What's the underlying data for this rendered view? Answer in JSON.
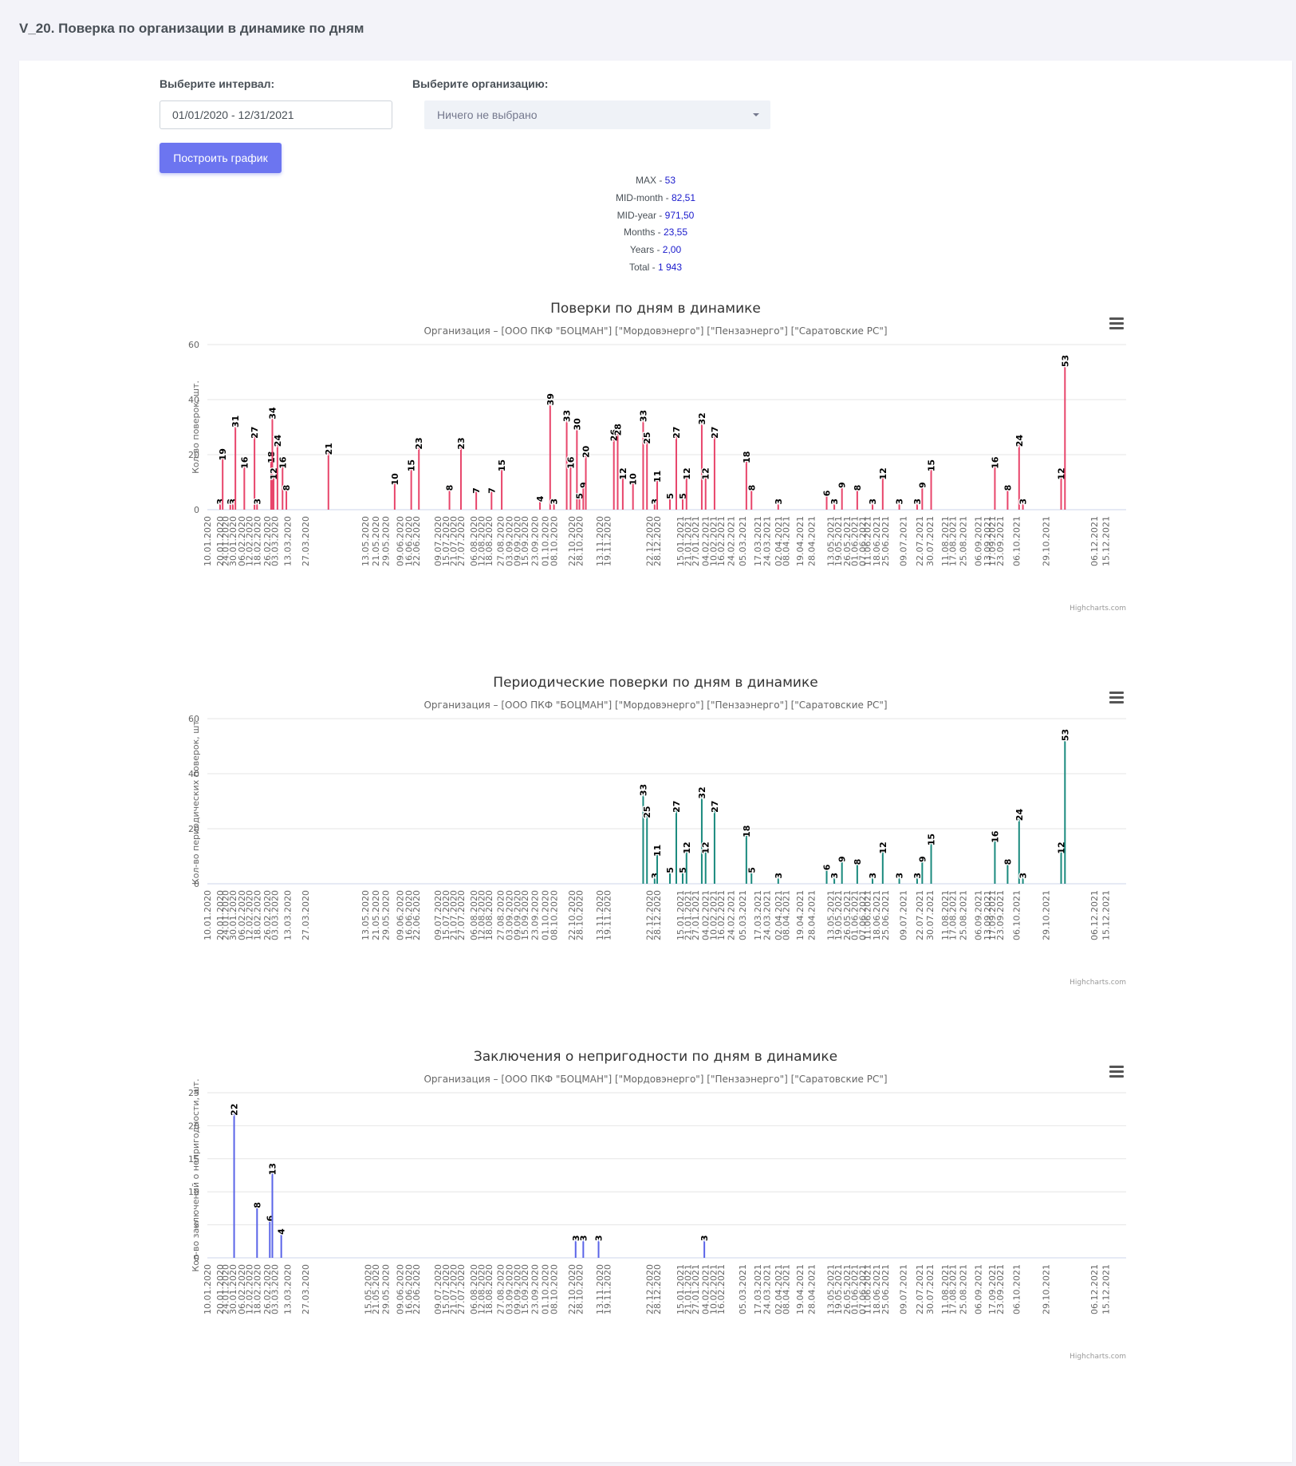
{
  "header": {
    "title": "V_20. Поверка по организации в динамике по дням"
  },
  "filters": {
    "interval_label": "Выберите интервал:",
    "interval_value": "01/01/2020 - 12/31/2021",
    "org_label": "Выберите организацию:",
    "org_value": "Ничего не выбрано",
    "build_button": "Построить график"
  },
  "stats": [
    {
      "label": "MAX - ",
      "value": "53"
    },
    {
      "label": "MID-month - ",
      "value": "82,51"
    },
    {
      "label": "MID-year - ",
      "value": "971,50"
    },
    {
      "label": "Months - ",
      "value": "23,55"
    },
    {
      "label": "Years - ",
      "value": "2,00"
    },
    {
      "label": "Total - ",
      "value": "1 943"
    }
  ],
  "colors": {
    "chart1": "#e8456b",
    "chart2": "#1a8a7e",
    "chart3": "#5a64e8",
    "accent": "#6c75f0"
  },
  "credits": "Highcharts.com",
  "chart_data": [
    {
      "type": "bar",
      "title": "Поверки по дням в динамике",
      "subtitle": "Организация – [ООО ПКФ \"БОЦМАН\"] [\"Мордовэнерго\"] [\"Пензаэнерго\"] [\"Саратовские РС\"]",
      "ylabel": "Кол-во поверок, шт.",
      "ylim": [
        0,
        60
      ],
      "yticks": [
        0,
        20,
        40,
        60
      ],
      "xdomain": [
        "2020-01-10",
        "2021-12-31"
      ],
      "xticks": [
        "10.01.2020",
        "20.01.2020",
        "24.01.2020",
        "30.01.2020",
        "06.02.2020",
        "12.02.2020",
        "18.02.2020",
        "26.02.2020",
        "03.03.2020",
        "13.03.2020",
        "27.03.2020",
        "13.05.2020",
        "21.05.2020",
        "29.05.2020",
        "09.06.2020",
        "16.06.2020",
        "22.06.2020",
        "09.07.2020",
        "15.07.2020",
        "21.07.2020",
        "27.07.2020",
        "06.08.2020",
        "12.08.2020",
        "18.08.2020",
        "27.08.2020",
        "03.09.2020",
        "09.09.2020",
        "15.09.2020",
        "23.09.2020",
        "01.10.2020",
        "08.10.2020",
        "22.10.2020",
        "28.10.2020",
        "13.11.2020",
        "19.11.2020",
        "22.12.2020",
        "28.12.2020",
        "15.01.2021",
        "21.01.2021",
        "27.01.2021",
        "04.02.2021",
        "10.02.2021",
        "16.02.2021",
        "24.02.2021",
        "05.03.2021",
        "17.03.2021",
        "24.03.2021",
        "02.04.2021",
        "08.04.2021",
        "19.04.2021",
        "28.04.2021",
        "13.05.2021",
        "19.05.2021",
        "26.05.2021",
        "01.06.2021",
        "07.06.2021",
        "11.06.2021",
        "18.06.2021",
        "25.06.2021",
        "09.07.2021",
        "22.07.2021",
        "30.07.2021",
        "11.08.2021",
        "17.08.2021",
        "25.08.2021",
        "06.09.2021",
        "13.09.2021",
        "17.09.2021",
        "23.09.2021",
        "06.10.2021",
        "29.10.2021",
        "06.12.2021",
        "15.12.2021"
      ],
      "labeled_points": [
        {
          "x": "2020-01-20",
          "y": 3
        },
        {
          "x": "2020-01-22",
          "y": 19
        },
        {
          "x": "2020-01-28",
          "y": 3
        },
        {
          "x": "2020-01-30",
          "y": 3
        },
        {
          "x": "2020-02-01",
          "y": 31
        },
        {
          "x": "2020-02-08",
          "y": 16
        },
        {
          "x": "2020-02-16",
          "y": 27
        },
        {
          "x": "2020-02-18",
          "y": 3
        },
        {
          "x": "2020-02-29",
          "y": 18
        },
        {
          "x": "2020-03-01",
          "y": 34
        },
        {
          "x": "2020-03-02",
          "y": 12
        },
        {
          "x": "2020-03-05",
          "y": 24
        },
        {
          "x": "2020-03-09",
          "y": 16
        },
        {
          "x": "2020-03-12",
          "y": 8
        },
        {
          "x": "2020-04-14",
          "y": 21
        },
        {
          "x": "2020-06-05",
          "y": 10
        },
        {
          "x": "2020-06-18",
          "y": 15
        },
        {
          "x": "2020-06-24",
          "y": 23
        },
        {
          "x": "2020-07-18",
          "y": 8
        },
        {
          "x": "2020-07-27",
          "y": 23
        },
        {
          "x": "2020-08-08",
          "y": 7
        },
        {
          "x": "2020-08-20",
          "y": 7
        },
        {
          "x": "2020-08-28",
          "y": 15
        },
        {
          "x": "2020-09-27",
          "y": 4
        },
        {
          "x": "2020-10-05",
          "y": 39
        },
        {
          "x": "2020-10-08",
          "y": 3
        },
        {
          "x": "2020-10-18",
          "y": 33
        },
        {
          "x": "2020-10-21",
          "y": 16
        },
        {
          "x": "2020-10-26",
          "y": 30
        },
        {
          "x": "2020-10-28",
          "y": 5
        },
        {
          "x": "2020-10-31",
          "y": 9
        },
        {
          "x": "2020-11-02",
          "y": 20
        },
        {
          "x": "2020-11-24",
          "y": 26
        },
        {
          "x": "2020-11-27",
          "y": 28
        },
        {
          "x": "2020-12-01",
          "y": 12
        },
        {
          "x": "2020-12-09",
          "y": 10
        },
        {
          "x": "2020-12-17",
          "y": 33
        },
        {
          "x": "2020-12-20",
          "y": 25
        },
        {
          "x": "2020-12-26",
          "y": 3
        },
        {
          "x": "2020-12-28",
          "y": 11
        },
        {
          "x": "2021-01-07",
          "y": 5
        },
        {
          "x": "2021-01-12",
          "y": 27
        },
        {
          "x": "2021-01-17",
          "y": 5
        },
        {
          "x": "2021-01-20",
          "y": 12
        },
        {
          "x": "2021-02-01",
          "y": 32
        },
        {
          "x": "2021-02-04",
          "y": 12
        },
        {
          "x": "2021-02-11",
          "y": 27
        },
        {
          "x": "2021-03-08",
          "y": 18
        },
        {
          "x": "2021-03-12",
          "y": 8
        },
        {
          "x": "2021-04-02",
          "y": 3
        },
        {
          "x": "2021-05-10",
          "y": 6
        },
        {
          "x": "2021-05-16",
          "y": 3
        },
        {
          "x": "2021-05-22",
          "y": 9
        },
        {
          "x": "2021-06-03",
          "y": 8
        },
        {
          "x": "2021-06-15",
          "y": 3
        },
        {
          "x": "2021-06-23",
          "y": 12
        },
        {
          "x": "2021-07-06",
          "y": 3
        },
        {
          "x": "2021-07-20",
          "y": 3
        },
        {
          "x": "2021-07-24",
          "y": 9
        },
        {
          "x": "2021-07-31",
          "y": 15
        },
        {
          "x": "2021-09-19",
          "y": 16
        },
        {
          "x": "2021-09-29",
          "y": 8
        },
        {
          "x": "2021-10-08",
          "y": 24
        },
        {
          "x": "2021-10-11",
          "y": 3
        },
        {
          "x": "2021-11-10",
          "y": 12
        },
        {
          "x": "2021-11-13",
          "y": 53
        }
      ]
    },
    {
      "type": "bar",
      "title": "Периодические поверки по дням в динамике",
      "subtitle": "Организация – [ООО ПКФ \"БОЦМАН\"] [\"Мордовэнерго\"] [\"Пензаэнерго\"] [\"Саратовские РС\"]",
      "ylabel": "Кол-во периодических поверок, шт.",
      "ylim": [
        0,
        60
      ],
      "yticks": [
        0,
        20,
        40,
        60
      ],
      "xdomain": [
        "2020-01-10",
        "2021-12-31"
      ],
      "xticks": [
        "10.01.2020",
        "20.01.2020",
        "24.01.2020",
        "30.01.2020",
        "06.02.2020",
        "12.02.2020",
        "18.02.2020",
        "26.02.2020",
        "03.03.2020",
        "13.03.2020",
        "27.03.2020",
        "13.05.2020",
        "21.05.2020",
        "29.05.2020",
        "09.06.2020",
        "16.06.2020",
        "22.06.2020",
        "09.07.2020",
        "15.07.2020",
        "21.07.2020",
        "27.07.2020",
        "06.08.2020",
        "12.08.2020",
        "18.08.2020",
        "27.08.2020",
        "03.09.2020",
        "09.09.2020",
        "15.09.2020",
        "23.09.2020",
        "01.10.2020",
        "08.10.2020",
        "22.10.2020",
        "28.10.2020",
        "13.11.2020",
        "19.11.2020",
        "22.12.2020",
        "28.12.2020",
        "15.01.2021",
        "21.01.2021",
        "27.01.2021",
        "04.02.2021",
        "10.02.2021",
        "16.02.2021",
        "24.02.2021",
        "05.03.2021",
        "17.03.2021",
        "24.03.2021",
        "02.04.2021",
        "08.04.2021",
        "19.04.2021",
        "28.04.2021",
        "13.05.2021",
        "19.05.2021",
        "26.05.2021",
        "01.06.2021",
        "07.06.2021",
        "11.06.2021",
        "18.06.2021",
        "25.06.2021",
        "09.07.2021",
        "22.07.2021",
        "30.07.2021",
        "11.08.2021",
        "17.08.2021",
        "25.08.2021",
        "06.09.2021",
        "13.09.2021",
        "17.09.2021",
        "23.09.2021",
        "06.10.2021",
        "29.10.2021",
        "06.12.2021",
        "15.12.2021"
      ],
      "labeled_points": [
        {
          "x": "2020-12-17",
          "y": 33
        },
        {
          "x": "2020-12-20",
          "y": 25
        },
        {
          "x": "2020-12-26",
          "y": 3
        },
        {
          "x": "2020-12-28",
          "y": 11
        },
        {
          "x": "2021-01-07",
          "y": 5
        },
        {
          "x": "2021-01-12",
          "y": 27
        },
        {
          "x": "2021-01-17",
          "y": 5
        },
        {
          "x": "2021-01-20",
          "y": 12
        },
        {
          "x": "2021-02-01",
          "y": 32
        },
        {
          "x": "2021-02-04",
          "y": 12
        },
        {
          "x": "2021-02-11",
          "y": 27
        },
        {
          "x": "2021-03-08",
          "y": 18
        },
        {
          "x": "2021-03-12",
          "y": 5
        },
        {
          "x": "2021-04-02",
          "y": 3
        },
        {
          "x": "2021-05-10",
          "y": 6
        },
        {
          "x": "2021-05-16",
          "y": 3
        },
        {
          "x": "2021-05-22",
          "y": 9
        },
        {
          "x": "2021-06-03",
          "y": 8
        },
        {
          "x": "2021-06-15",
          "y": 3
        },
        {
          "x": "2021-06-23",
          "y": 12
        },
        {
          "x": "2021-07-06",
          "y": 3
        },
        {
          "x": "2021-07-20",
          "y": 3
        },
        {
          "x": "2021-07-24",
          "y": 9
        },
        {
          "x": "2021-07-31",
          "y": 15
        },
        {
          "x": "2021-09-19",
          "y": 16
        },
        {
          "x": "2021-09-29",
          "y": 8
        },
        {
          "x": "2021-10-08",
          "y": 24
        },
        {
          "x": "2021-10-11",
          "y": 3
        },
        {
          "x": "2021-11-10",
          "y": 12
        },
        {
          "x": "2021-11-13",
          "y": 53
        }
      ]
    },
    {
      "type": "bar",
      "title": "Заключения о непригодности по дням в динамике",
      "subtitle": "Организация – [ООО ПКФ \"БОЦМАН\"] [\"Мордовэнерго\"] [\"Пензаэнерго\"] [\"Саратовские РС\"]",
      "ylabel": "Кол-во заключений о непригодности, шт.",
      "ylim": [
        0,
        25
      ],
      "yticks": [
        0,
        5,
        10,
        15,
        20,
        25
      ],
      "xdomain": [
        "2020-01-10",
        "2021-12-31"
      ],
      "xticks": [
        "10.01.2020",
        "20.01.2020",
        "24.01.2020",
        "30.01.2020",
        "06.02.2020",
        "12.02.2020",
        "18.02.2020",
        "26.02.2020",
        "03.03.2020",
        "13.03.2020",
        "27.03.2020",
        "15.05.2020",
        "21.05.2020",
        "29.05.2020",
        "09.06.2020",
        "16.06.2020",
        "22.06.2020",
        "09.07.2020",
        "15.07.2020",
        "21.07.2020",
        "27.07.2020",
        "06.08.2020",
        "12.08.2020",
        "18.08.2020",
        "27.08.2020",
        "03.09.2020",
        "09.09.2020",
        "15.09.2020",
        "23.09.2020",
        "01.10.2020",
        "08.10.2020",
        "22.10.2020",
        "28.10.2020",
        "13.11.2020",
        "19.11.2020",
        "22.12.2020",
        "28.12.2020",
        "15.01.2021",
        "21.01.2021",
        "27.01.2021",
        "04.02.2021",
        "10.02.2021",
        "16.02.2021",
        "05.03.2021",
        "17.03.2021",
        "24.03.2021",
        "02.04.2021",
        "08.04.2021",
        "19.04.2021",
        "28.04.2021",
        "13.05.2021",
        "19.05.2021",
        "26.05.2021",
        "01.06.2021",
        "07.06.2021",
        "11.06.2021",
        "18.06.2021",
        "25.06.2021",
        "09.07.2021",
        "22.07.2021",
        "30.07.2021",
        "11.08.2021",
        "17.08.2021",
        "25.08.2021",
        "06.09.2021",
        "17.09.2021",
        "23.09.2021",
        "06.10.2021",
        "29.10.2021",
        "06.12.2021",
        "15.12.2021"
      ],
      "labeled_points": [
        {
          "x": "2020-01-31",
          "y": 22
        },
        {
          "x": "2020-02-18",
          "y": 8
        },
        {
          "x": "2020-02-28",
          "y": 6
        },
        {
          "x": "2020-03-01",
          "y": 13
        },
        {
          "x": "2020-03-08",
          "y": 4
        },
        {
          "x": "2020-10-25",
          "y": 3
        },
        {
          "x": "2020-10-31",
          "y": 3
        },
        {
          "x": "2020-11-12",
          "y": 3
        },
        {
          "x": "2021-02-03",
          "y": 3
        }
      ]
    }
  ]
}
